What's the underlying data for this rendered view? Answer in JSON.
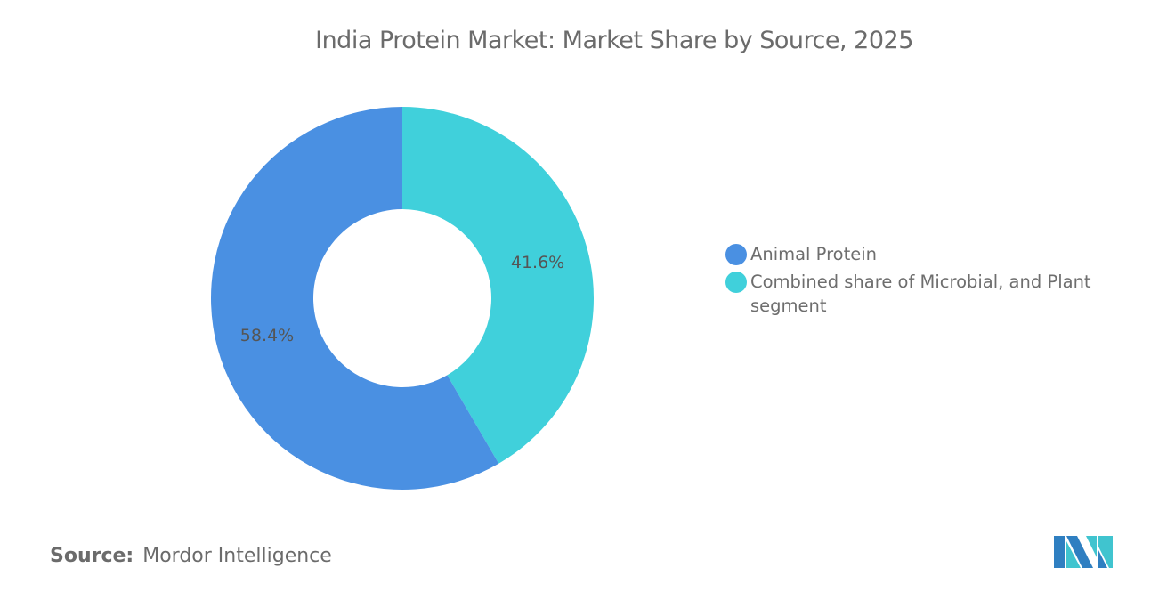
{
  "chart_data": {
    "type": "pie",
    "donut": true,
    "title": "India Protein Market: Market Share by Source, 2025",
    "slices": [
      {
        "name": "Combined share of Microbial, and Plant segment",
        "value": 41.6,
        "label": "41.6%",
        "color": "#40d0db"
      },
      {
        "name": "Animal Protein",
        "value": 58.4,
        "label": "58.4%",
        "color": "#4a90e2"
      }
    ],
    "legend_order": [
      1,
      0
    ],
    "legend_position": "right"
  },
  "source": {
    "label": "Source:",
    "value": "Mordor Intelligence"
  },
  "logo": {
    "text": "Mordor Intelligence logo"
  }
}
